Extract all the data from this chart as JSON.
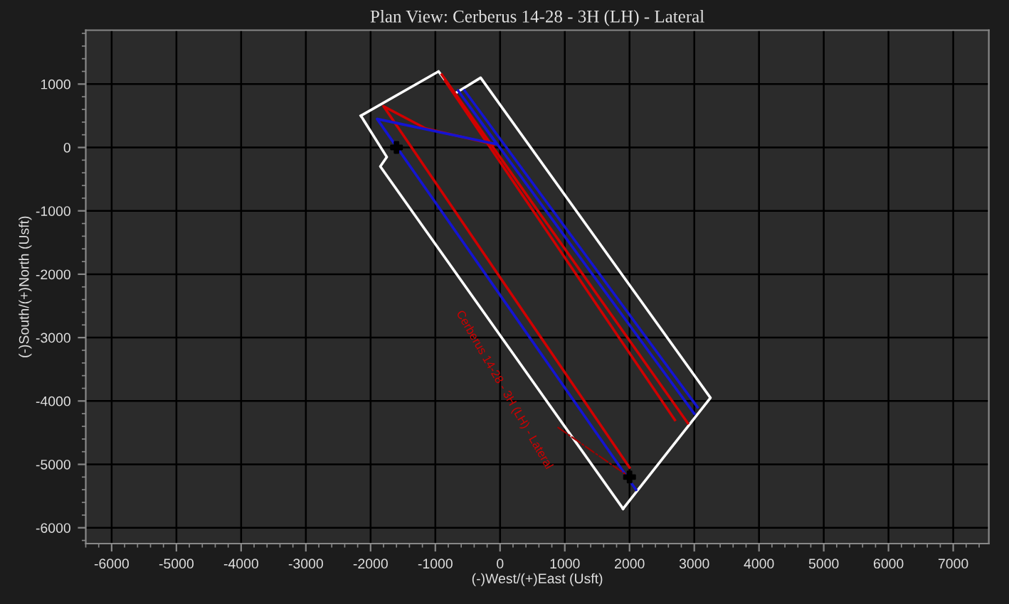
{
  "chart_data": {
    "type": "line",
    "title": "Plan View: Cerberus 14-28 - 3H (LH) - Lateral",
    "xlabel": "(-)West/(+)East (Usft)",
    "ylabel": "(-)South/(+)North (Usft)",
    "xlim": [
      -6400,
      7550
    ],
    "ylim": [
      -6250,
      1850
    ],
    "xticks": [
      -6000,
      -5000,
      -4000,
      -3000,
      -2000,
      -1000,
      0,
      1000,
      2000,
      3000,
      4000,
      5000,
      6000,
      7000
    ],
    "yticks": [
      -6000,
      -5000,
      -4000,
      -3000,
      -2000,
      -1000,
      0,
      1000
    ],
    "grid": true,
    "legend": false,
    "series": [
      {
        "color": "#ffffff",
        "x": [
          -2150,
          -950,
          -700,
          -300,
          3250,
          1900
        ],
        "values": [
          500,
          1200,
          850,
          1100,
          -3950,
          -5700
        ]
      },
      {
        "color": "#ffffff",
        "x": [
          1900,
          -1850,
          -1750,
          -2150
        ],
        "values": [
          -5700,
          -300,
          -150,
          500
        ]
      },
      {
        "color": "#d00000",
        "x": [
          2000,
          -1800,
          -1150,
          -100
        ],
        "values": [
          -5050,
          650,
          300,
          50
        ]
      },
      {
        "color": "#d00000",
        "x": [
          -900,
          2900
        ],
        "values": [
          1150,
          -4350
        ]
      },
      {
        "color": "#d00000",
        "x": [
          -850,
          2700
        ],
        "values": [
          1050,
          -4300
        ]
      },
      {
        "color": "#1414d2",
        "x": [
          2100,
          -1900,
          -50,
          -650,
          3000
        ],
        "values": [
          -5400,
          450,
          50,
          900,
          -4200
        ]
      },
      {
        "color": "#1414d2",
        "x": [
          -550,
          3050
        ],
        "values": [
          900,
          -4100
        ]
      },
      {
        "type": "scatter",
        "marker": "cross",
        "color": "#000000",
        "x": [
          -1600,
          2000
        ],
        "values": [
          0,
          -5200
        ]
      }
    ],
    "annotations": [
      {
        "text": "Cerberus 14-28 - 3H (LH) - Lateral",
        "x": 2000,
        "y": -5200
      }
    ]
  }
}
